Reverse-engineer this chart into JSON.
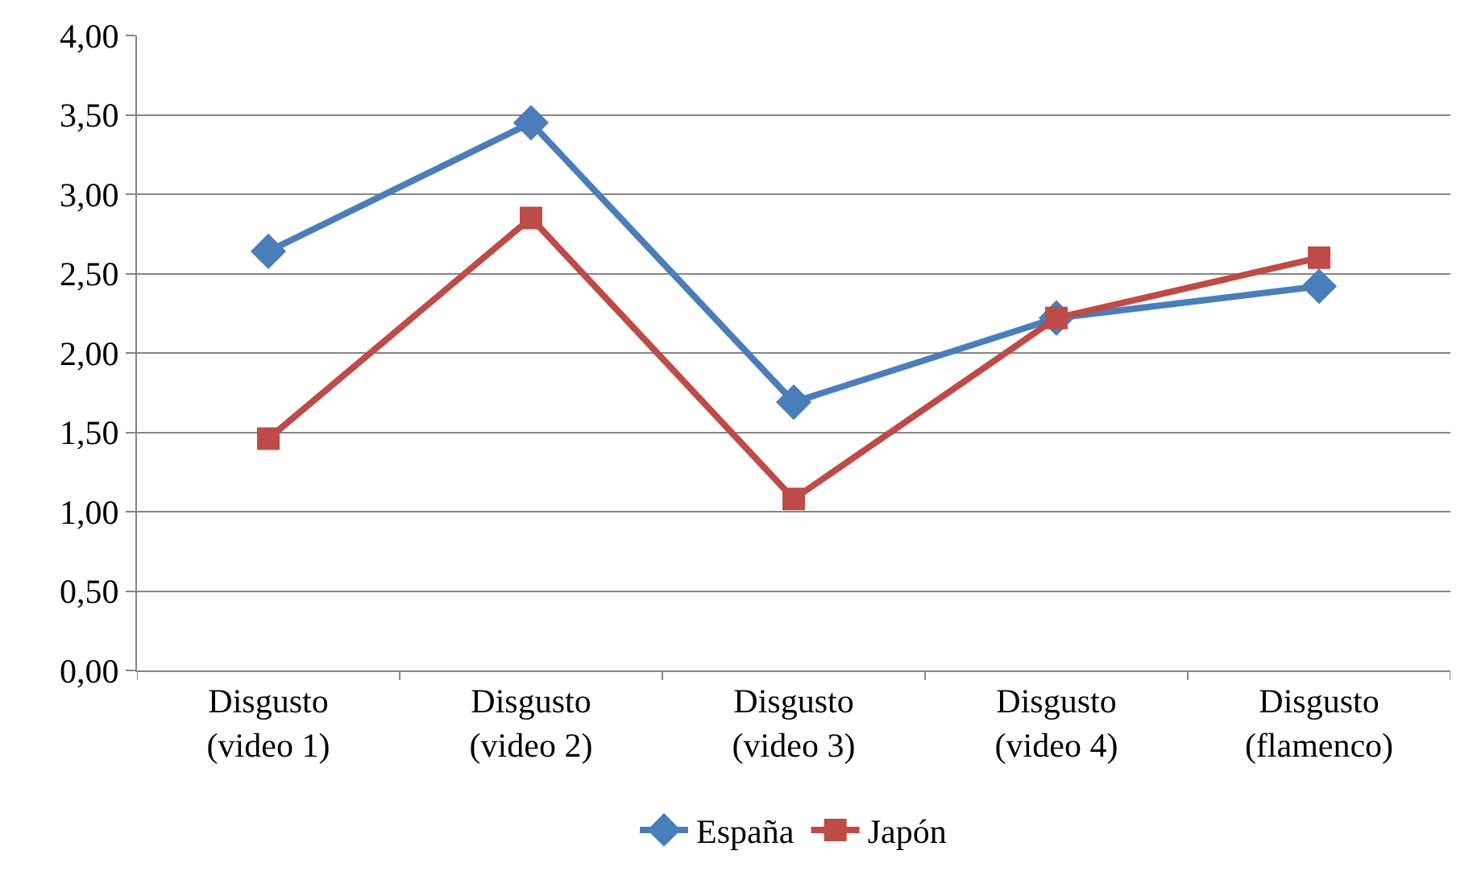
{
  "chart_data": {
    "type": "line",
    "categories": [
      "Disgusto (video 1)",
      "Disgusto (video 2)",
      "Disgusto (video 3)",
      "Disgusto (video 4)",
      "Disgusto (flamenco)"
    ],
    "series": [
      {
        "name": "España",
        "color": "#4a7ebb",
        "marker": "diamond",
        "values": [
          2.64,
          3.45,
          1.69,
          2.22,
          2.42
        ]
      },
      {
        "name": "Japón",
        "color": "#be4b48",
        "marker": "square",
        "values": [
          1.46,
          2.85,
          1.08,
          2.22,
          2.6
        ]
      }
    ],
    "ylim": [
      0,
      4
    ],
    "yticks": [
      {
        "value": 0,
        "label": "0,00"
      },
      {
        "value": 0.5,
        "label": "0,50"
      },
      {
        "value": 1,
        "label": "1,00"
      },
      {
        "value": 1.5,
        "label": "1,50"
      },
      {
        "value": 2,
        "label": "2,00"
      },
      {
        "value": 2.5,
        "label": "2,50"
      },
      {
        "value": 3,
        "label": "3,00"
      },
      {
        "value": 3.5,
        "label": "3,50"
      },
      {
        "value": 4,
        "label": "4,00"
      }
    ],
    "grid": "y",
    "legend": "bottom",
    "line_style": "solid"
  }
}
